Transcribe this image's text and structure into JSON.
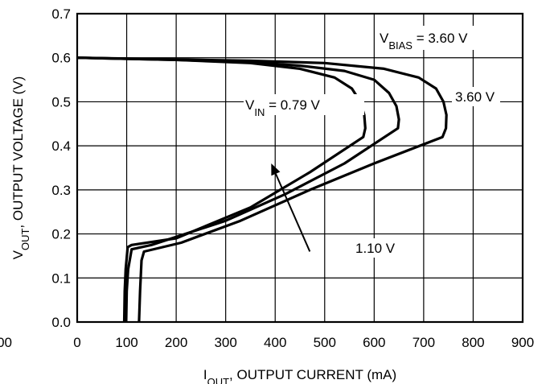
{
  "chart_data": {
    "type": "line",
    "title": "",
    "xlabel": {
      "main": "I",
      "sub": "OUT",
      "rest": ", OUTPUT CURRENT (mA)"
    },
    "ylabel": {
      "main": "V",
      "sub": "OUT",
      "rest": ", OUTPUT VOLTAGE (V)"
    },
    "xlim": [
      0,
      900
    ],
    "ylim": [
      0,
      0.7
    ],
    "xticks": [
      0,
      100,
      200,
      300,
      400,
      500,
      600,
      700,
      800,
      900
    ],
    "xtick_labels": [
      "0",
      "100",
      "200",
      "300",
      "400",
      "500",
      "600",
      "700",
      "800",
      "900"
    ],
    "left_cut_label": "00",
    "yticks": [
      0.0,
      0.1,
      0.2,
      0.3,
      0.4,
      0.5,
      0.6,
      0.7
    ],
    "ytick_labels": [
      "0.0",
      "0.1",
      "0.2",
      "0.3",
      "0.4",
      "0.5",
      "0.6",
      "0.7"
    ],
    "grid": true,
    "annotations": {
      "vbias": {
        "main": "V",
        "sub": "BIAS",
        "rest": " = 3.60 V"
      },
      "vin079": {
        "main": "V",
        "sub": "IN",
        "rest": " = 0.79 V"
      },
      "vin360": "3.60 V",
      "vin110": "1.10 V"
    },
    "series": [
      {
        "name": "0.79 V",
        "points": [
          [
            0,
            0.6
          ],
          [
            200,
            0.595
          ],
          [
            350,
            0.588
          ],
          [
            450,
            0.575
          ],
          [
            520,
            0.555
          ],
          [
            555,
            0.53
          ],
          [
            572,
            0.5
          ],
          [
            580,
            0.47
          ],
          [
            582,
            0.44
          ],
          [
            578,
            0.42
          ],
          [
            470,
            0.34
          ],
          [
            350,
            0.26
          ],
          [
            200,
            0.19
          ],
          [
            110,
            0.175
          ],
          [
            102,
            0.17
          ],
          [
            98,
            0.12
          ],
          [
            96,
            0.07
          ],
          [
            95,
            0.0
          ]
        ]
      },
      {
        "name": "1.10 V",
        "points": [
          [
            0,
            0.6
          ],
          [
            200,
            0.595
          ],
          [
            350,
            0.59
          ],
          [
            450,
            0.582
          ],
          [
            540,
            0.57
          ],
          [
            600,
            0.55
          ],
          [
            630,
            0.52
          ],
          [
            645,
            0.49
          ],
          [
            650,
            0.46
          ],
          [
            648,
            0.44
          ],
          [
            540,
            0.36
          ],
          [
            420,
            0.29
          ],
          [
            300,
            0.23
          ],
          [
            150,
            0.175
          ],
          [
            110,
            0.165
          ],
          [
            103,
            0.12
          ],
          [
            100,
            0.07
          ],
          [
            99,
            0.0
          ]
        ]
      },
      {
        "name": "3.60 V",
        "points": [
          [
            0,
            0.6
          ],
          [
            200,
            0.596
          ],
          [
            350,
            0.593
          ],
          [
            500,
            0.588
          ],
          [
            620,
            0.575
          ],
          [
            690,
            0.555
          ],
          [
            725,
            0.53
          ],
          [
            740,
            0.5
          ],
          [
            746,
            0.47
          ],
          [
            745,
            0.44
          ],
          [
            738,
            0.42
          ],
          [
            600,
            0.36
          ],
          [
            470,
            0.3
          ],
          [
            330,
            0.23
          ],
          [
            210,
            0.18
          ],
          [
            135,
            0.16
          ],
          [
            130,
            0.14
          ],
          [
            127,
            0.07
          ],
          [
            125,
            0.0
          ]
        ]
      }
    ],
    "arrow": {
      "from": [
        470,
        0.16
      ],
      "to": [
        392,
        0.36
      ]
    },
    "style": {
      "line_color": "#000000",
      "grid_color": "#000000",
      "background": "#ffffff"
    }
  }
}
